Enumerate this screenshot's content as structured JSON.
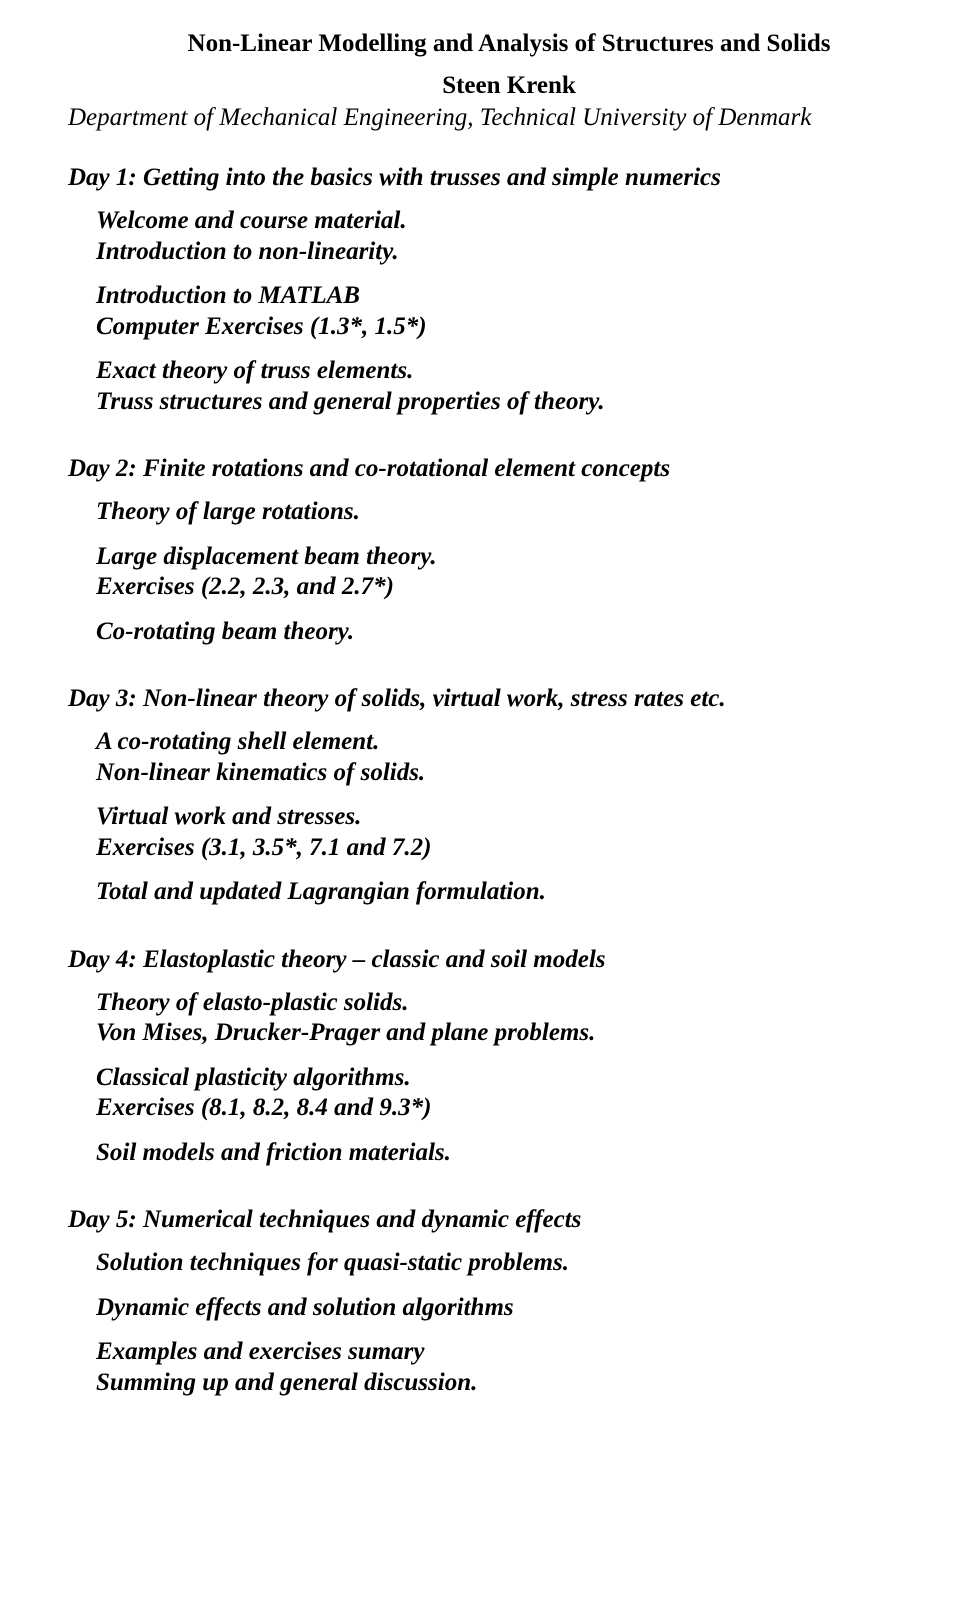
{
  "title": "Non-Linear Modelling and Analysis of Structures and Solids",
  "author": "Steen Krenk",
  "affiliation": "Department of Mechanical Engineering, Technical University of Denmark",
  "days": [
    {
      "heading": "Day 1: Getting into the basics with trusses and simple numerics",
      "blocks": [
        [
          "Welcome and course material.",
          "Introduction to non-linearity."
        ],
        [
          "Introduction to MATLAB",
          "Computer Exercises (1.3*,  1.5*)"
        ],
        [
          "Exact theory of truss elements.",
          "Truss structures and general properties of theory."
        ]
      ]
    },
    {
      "heading": "Day 2: Finite rotations and co-rotational element concepts",
      "blocks": [
        [
          "Theory of large rotations."
        ],
        [
          "Large displacement beam theory.",
          "Exercises (2.2, 2.3, and 2.7*)"
        ],
        [
          "Co-rotating beam theory."
        ]
      ]
    },
    {
      "heading": "Day 3: Non-linear theory of solids, virtual work, stress rates etc.",
      "blocks": [
        [
          "A co-rotating shell element.",
          "Non-linear kinematics of solids."
        ],
        [
          "Virtual work and stresses.",
          "Exercises (3.1, 3.5*, 7.1 and 7.2)"
        ],
        [
          "Total and updated Lagrangian formulation."
        ]
      ]
    },
    {
      "heading": "Day 4: Elastoplastic theory – classic and soil models",
      "blocks": [
        [
          "Theory of elasto-plastic solids.",
          "Von Mises, Drucker-Prager and plane problems."
        ],
        [
          "Classical plasticity algorithms.",
          "Exercises (8.1, 8.2, 8.4  and 9.3*)"
        ],
        [
          "Soil models and friction materials."
        ]
      ]
    },
    {
      "heading": "Day 5: Numerical techniques and dynamic effects",
      "blocks": [
        [
          "Solution techniques for quasi-static problems."
        ],
        [
          "Dynamic effects and solution algorithms"
        ],
        [
          "Examples and exercises sumary",
          "Summing up and general discussion."
        ]
      ]
    }
  ]
}
